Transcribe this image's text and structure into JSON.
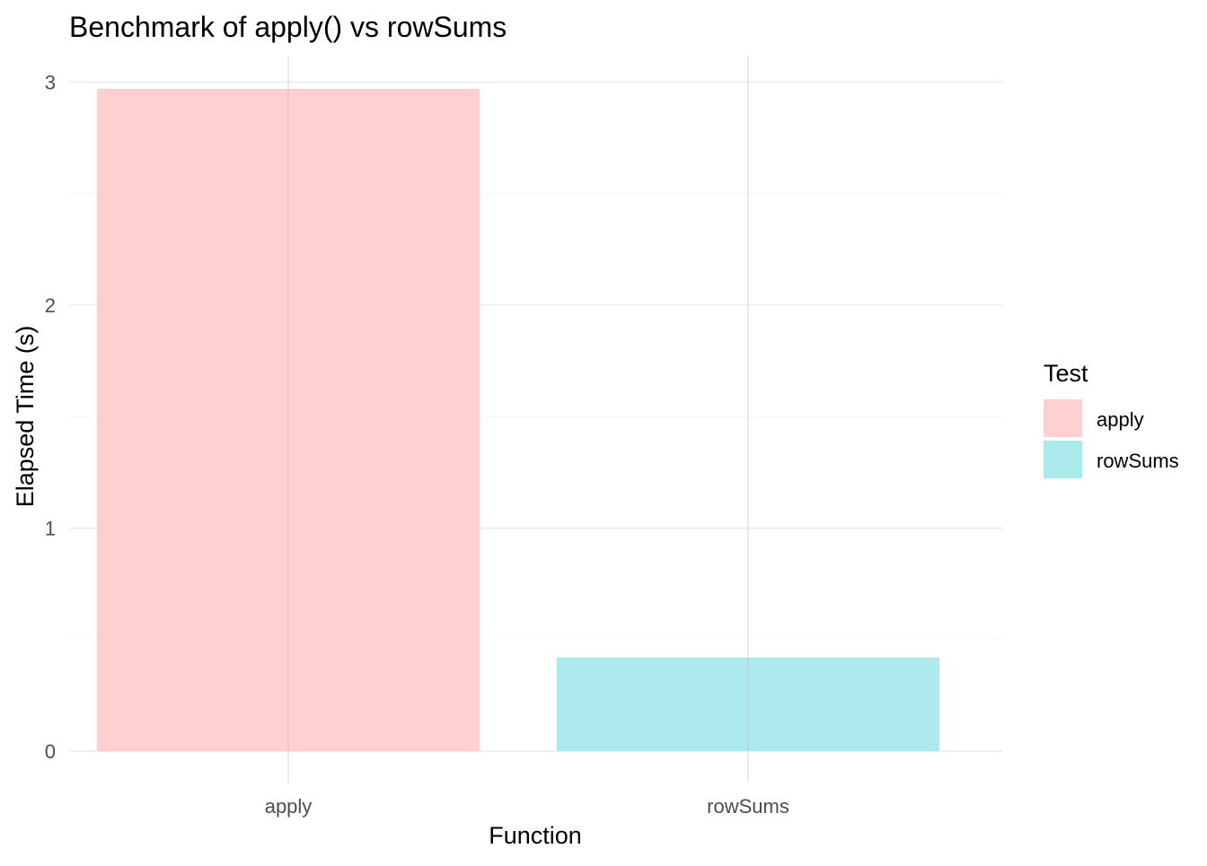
{
  "chart_data": {
    "type": "bar",
    "title": "Benchmark of apply() vs rowSums",
    "xlabel": "Function",
    "ylabel": "Elapsed Time (s)",
    "categories": [
      "apply",
      "rowSums"
    ],
    "values": [
      2.97,
      0.42
    ],
    "colors": [
      "#ffd0cf",
      "#ace9ec"
    ],
    "ylim": [
      0,
      3
    ],
    "yticks": [
      0,
      1,
      2,
      3
    ],
    "grid": true,
    "legend": {
      "title": "Test",
      "placement": "right",
      "entries": [
        "apply",
        "rowSums"
      ]
    }
  }
}
